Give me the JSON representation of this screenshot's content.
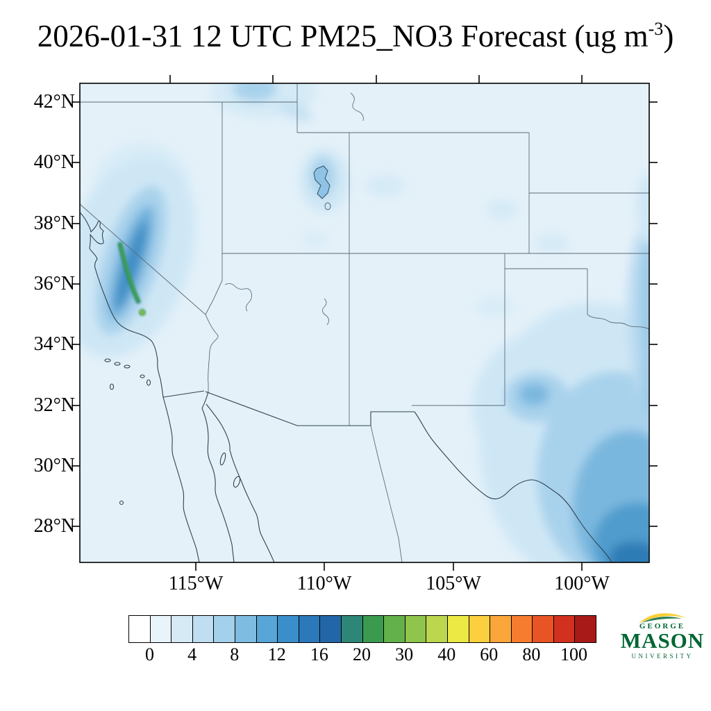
{
  "title": {
    "prefix": "2026-01-31 12 UTC PM25_NO3 Forecast (ug m",
    "superscript": "-3",
    "suffix": ")"
  },
  "map": {
    "lat_labels": [
      "42°N",
      "40°N",
      "38°N",
      "36°N",
      "34°N",
      "32°N",
      "30°N",
      "28°N"
    ],
    "lon_labels": [
      "115°W",
      "110°W",
      "105°W",
      "100°W"
    ]
  },
  "colorbar": {
    "tick_labels": [
      "0",
      "4",
      "8",
      "12",
      "16",
      "20",
      "30",
      "40",
      "60",
      "80",
      "100"
    ],
    "colors": [
      "#ffffff",
      "#e8f3fa",
      "#d6eaf6",
      "#c0def1",
      "#a3d0ea",
      "#7fbce2",
      "#58a5d7",
      "#3a8ec9",
      "#2b79ba",
      "#2366a8",
      "#2e8676",
      "#3a9b4e",
      "#62b14b",
      "#8fc44d",
      "#bcd64e",
      "#ece844",
      "#fccf3e",
      "#fba63a",
      "#f67d30",
      "#e95426",
      "#d1311e",
      "#a81a18"
    ],
    "border_color": "#000000"
  },
  "logo": {
    "top": "GEORGE",
    "name": "MASON",
    "bottom": "UNIVERSITY",
    "green": "#006633",
    "gold": "#ffcc33"
  }
}
